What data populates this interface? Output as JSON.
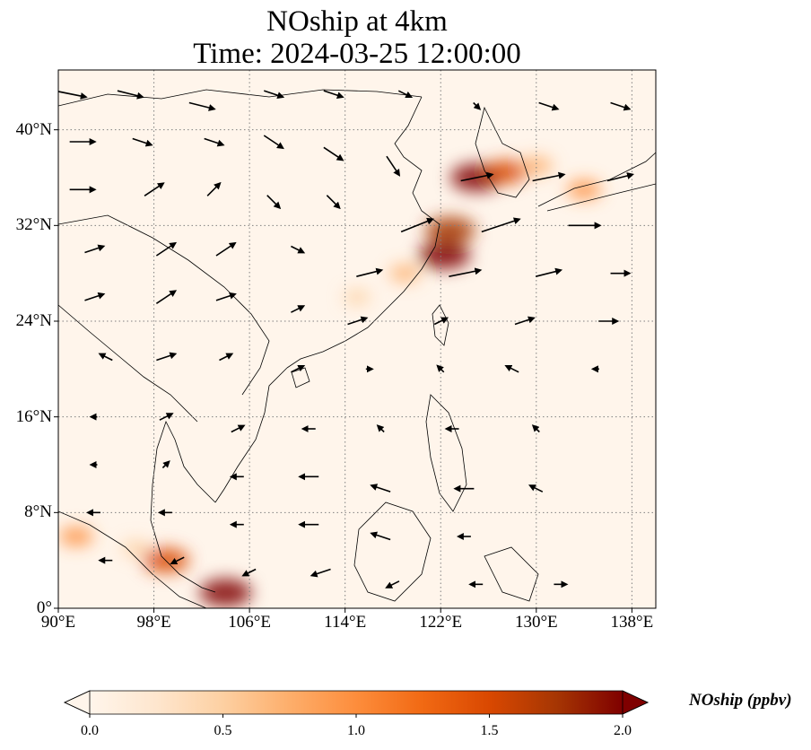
{
  "title": {
    "line1": "NOship at 4km",
    "line2": "Time: 2024-03-25 12:00:00"
  },
  "map": {
    "lon_range": [
      90,
      140
    ],
    "lat_range": [
      0,
      45
    ],
    "lon_ticks": [
      {
        "value": 90,
        "label": "90°E"
      },
      {
        "value": 98,
        "label": "98°E"
      },
      {
        "value": 106,
        "label": "106°E"
      },
      {
        "value": 114,
        "label": "114°E"
      },
      {
        "value": 122,
        "label": "122°E"
      },
      {
        "value": 130,
        "label": "130°E"
      },
      {
        "value": 138,
        "label": "138°E"
      }
    ],
    "lat_ticks": [
      {
        "value": 0,
        "label": "0°"
      },
      {
        "value": 8,
        "label": "8°N"
      },
      {
        "value": 16,
        "label": "16°N"
      },
      {
        "value": 24,
        "label": "24°N"
      },
      {
        "value": 32,
        "label": "32°N"
      },
      {
        "value": 40,
        "label": "40°N"
      }
    ],
    "gridlines": true,
    "concentration_hotspots": [
      {
        "lon": 125.0,
        "lat": 36.0,
        "value": 1.9
      },
      {
        "lon": 127.5,
        "lat": 36.5,
        "value": 1.4
      },
      {
        "lon": 130.0,
        "lat": 37.0,
        "value": 0.8
      },
      {
        "lon": 134.0,
        "lat": 35.0,
        "value": 0.9
      },
      {
        "lon": 122.8,
        "lat": 31.6,
        "value": 1.8
      },
      {
        "lon": 122.3,
        "lat": 29.5,
        "value": 1.9
      },
      {
        "lon": 119.0,
        "lat": 28.0,
        "value": 0.7
      },
      {
        "lon": 115.0,
        "lat": 26.0,
        "value": 0.5
      },
      {
        "lon": 99.0,
        "lat": 4.0,
        "value": 1.6
      },
      {
        "lon": 104.0,
        "lat": 1.3,
        "value": 1.9
      },
      {
        "lon": 91.5,
        "lat": 6.0,
        "value": 0.9
      },
      {
        "lon": 96.5,
        "lat": 5.0,
        "value": 0.6
      }
    ],
    "wind_vectors": [
      {
        "lon": 91,
        "lat": 43,
        "u": 5,
        "v": -1
      },
      {
        "lon": 96,
        "lat": 43,
        "u": 4,
        "v": -1
      },
      {
        "lon": 102,
        "lat": 42,
        "u": 4,
        "v": -1
      },
      {
        "lon": 108,
        "lat": 43,
        "u": 3,
        "v": -1
      },
      {
        "lon": 113,
        "lat": 43,
        "u": 3,
        "v": -1
      },
      {
        "lon": 119,
        "lat": 43,
        "u": 2,
        "v": -1
      },
      {
        "lon": 125,
        "lat": 42,
        "u": 1,
        "v": -1
      },
      {
        "lon": 131,
        "lat": 42,
        "u": 3,
        "v": -1
      },
      {
        "lon": 137,
        "lat": 42,
        "u": 3,
        "v": -1
      },
      {
        "lon": 92,
        "lat": 39,
        "u": 4,
        "v": 0
      },
      {
        "lon": 97,
        "lat": 39,
        "u": 3,
        "v": -1
      },
      {
        "lon": 103,
        "lat": 39,
        "u": 3,
        "v": -1
      },
      {
        "lon": 108,
        "lat": 39,
        "u": 3,
        "v": -2
      },
      {
        "lon": 113,
        "lat": 38,
        "u": 3,
        "v": -2
      },
      {
        "lon": 118,
        "lat": 37,
        "u": 2,
        "v": -3
      },
      {
        "lon": 125,
        "lat": 36,
        "u": 5,
        "v": 1
      },
      {
        "lon": 131,
        "lat": 36,
        "u": 5,
        "v": 1
      },
      {
        "lon": 137,
        "lat": 36,
        "u": 4,
        "v": 1
      },
      {
        "lon": 92,
        "lat": 35,
        "u": 4,
        "v": 0
      },
      {
        "lon": 98,
        "lat": 35,
        "u": 3,
        "v": 2
      },
      {
        "lon": 103,
        "lat": 35,
        "u": 2,
        "v": 2
      },
      {
        "lon": 108,
        "lat": 34,
        "u": 2,
        "v": -2
      },
      {
        "lon": 113,
        "lat": 34,
        "u": 2,
        "v": -2
      },
      {
        "lon": 120,
        "lat": 32,
        "u": 5,
        "v": 2
      },
      {
        "lon": 127,
        "lat": 32,
        "u": 6,
        "v": 2
      },
      {
        "lon": 134,
        "lat": 32,
        "u": 5,
        "v": 0
      },
      {
        "lon": 93,
        "lat": 30,
        "u": 3,
        "v": 1
      },
      {
        "lon": 99,
        "lat": 30,
        "u": 3,
        "v": 2
      },
      {
        "lon": 104,
        "lat": 30,
        "u": 3,
        "v": 2
      },
      {
        "lon": 110,
        "lat": 30,
        "u": 2,
        "v": -1
      },
      {
        "lon": 116,
        "lat": 28,
        "u": 4,
        "v": 1
      },
      {
        "lon": 124,
        "lat": 28,
        "u": 5,
        "v": 1
      },
      {
        "lon": 131,
        "lat": 28,
        "u": 4,
        "v": 1
      },
      {
        "lon": 137,
        "lat": 28,
        "u": 3,
        "v": 0
      },
      {
        "lon": 93,
        "lat": 26,
        "u": 3,
        "v": 1
      },
      {
        "lon": 99,
        "lat": 26,
        "u": 3,
        "v": 2
      },
      {
        "lon": 104,
        "lat": 26,
        "u": 3,
        "v": 1
      },
      {
        "lon": 110,
        "lat": 25,
        "u": 2,
        "v": 1
      },
      {
        "lon": 115,
        "lat": 24,
        "u": 3,
        "v": 1
      },
      {
        "lon": 122,
        "lat": 24,
        "u": 2,
        "v": 1
      },
      {
        "lon": 129,
        "lat": 24,
        "u": 3,
        "v": 1
      },
      {
        "lon": 136,
        "lat": 24,
        "u": 3,
        "v": 0
      },
      {
        "lon": 94,
        "lat": 21,
        "u": -2,
        "v": 1
      },
      {
        "lon": 99,
        "lat": 21,
        "u": 3,
        "v": 1
      },
      {
        "lon": 104,
        "lat": 21,
        "u": 2,
        "v": 1
      },
      {
        "lon": 110,
        "lat": 20,
        "u": 2,
        "v": 1
      },
      {
        "lon": 116,
        "lat": 20,
        "u": 1,
        "v": 0
      },
      {
        "lon": 122,
        "lat": 20,
        "u": -1,
        "v": 1
      },
      {
        "lon": 128,
        "lat": 20,
        "u": -2,
        "v": 1
      },
      {
        "lon": 135,
        "lat": 20,
        "u": -1,
        "v": 0
      },
      {
        "lon": 93,
        "lat": 16,
        "u": -1,
        "v": 0
      },
      {
        "lon": 99,
        "lat": 16,
        "u": 2,
        "v": 1
      },
      {
        "lon": 105,
        "lat": 15,
        "u": 2,
        "v": 1
      },
      {
        "lon": 111,
        "lat": 15,
        "u": -2,
        "v": 0
      },
      {
        "lon": 117,
        "lat": 15,
        "u": -1,
        "v": 1
      },
      {
        "lon": 123,
        "lat": 15,
        "u": -2,
        "v": 0
      },
      {
        "lon": 130,
        "lat": 15,
        "u": -1,
        "v": 1
      },
      {
        "lon": 93,
        "lat": 12,
        "u": -1,
        "v": 0
      },
      {
        "lon": 99,
        "lat": 12,
        "u": 1,
        "v": 1
      },
      {
        "lon": 105,
        "lat": 11,
        "u": -2,
        "v": 0
      },
      {
        "lon": 111,
        "lat": 11,
        "u": -3,
        "v": 0
      },
      {
        "lon": 117,
        "lat": 10,
        "u": -3,
        "v": 1
      },
      {
        "lon": 124,
        "lat": 10,
        "u": -3,
        "v": 0
      },
      {
        "lon": 130,
        "lat": 10,
        "u": -2,
        "v": 1
      },
      {
        "lon": 93,
        "lat": 8,
        "u": -2,
        "v": 0
      },
      {
        "lon": 99,
        "lat": 8,
        "u": -2,
        "v": 0
      },
      {
        "lon": 105,
        "lat": 7,
        "u": -2,
        "v": 0
      },
      {
        "lon": 111,
        "lat": 7,
        "u": -3,
        "v": 0
      },
      {
        "lon": 117,
        "lat": 6,
        "u": -3,
        "v": 1
      },
      {
        "lon": 124,
        "lat": 6,
        "u": -2,
        "v": 0
      },
      {
        "lon": 94,
        "lat": 4,
        "u": -2,
        "v": 0
      },
      {
        "lon": 100,
        "lat": 4,
        "u": -2,
        "v": -1
      },
      {
        "lon": 106,
        "lat": 3,
        "u": -2,
        "v": -1
      },
      {
        "lon": 112,
        "lat": 3,
        "u": -3,
        "v": -1
      },
      {
        "lon": 118,
        "lat": 2,
        "u": -2,
        "v": -1
      },
      {
        "lon": 125,
        "lat": 2,
        "u": -2,
        "v": 0
      },
      {
        "lon": 132,
        "lat": 2,
        "u": 2,
        "v": 0
      }
    ]
  },
  "colorbar": {
    "label": "NOship (ppbv)",
    "min": 0.0,
    "max": 2.0,
    "ticks": [
      {
        "value": 0.0,
        "label": "0.0"
      },
      {
        "value": 0.5,
        "label": "0.5"
      },
      {
        "value": 1.0,
        "label": "1.0"
      },
      {
        "value": 1.5,
        "label": "1.5"
      },
      {
        "value": 2.0,
        "label": "2.0"
      }
    ],
    "extend": "both",
    "colormap": [
      "#fff5eb",
      "#fee6ce",
      "#fdd0a2",
      "#fdae6b",
      "#fd8d3c",
      "#f16913",
      "#d94801",
      "#a63603",
      "#7f0000"
    ]
  }
}
